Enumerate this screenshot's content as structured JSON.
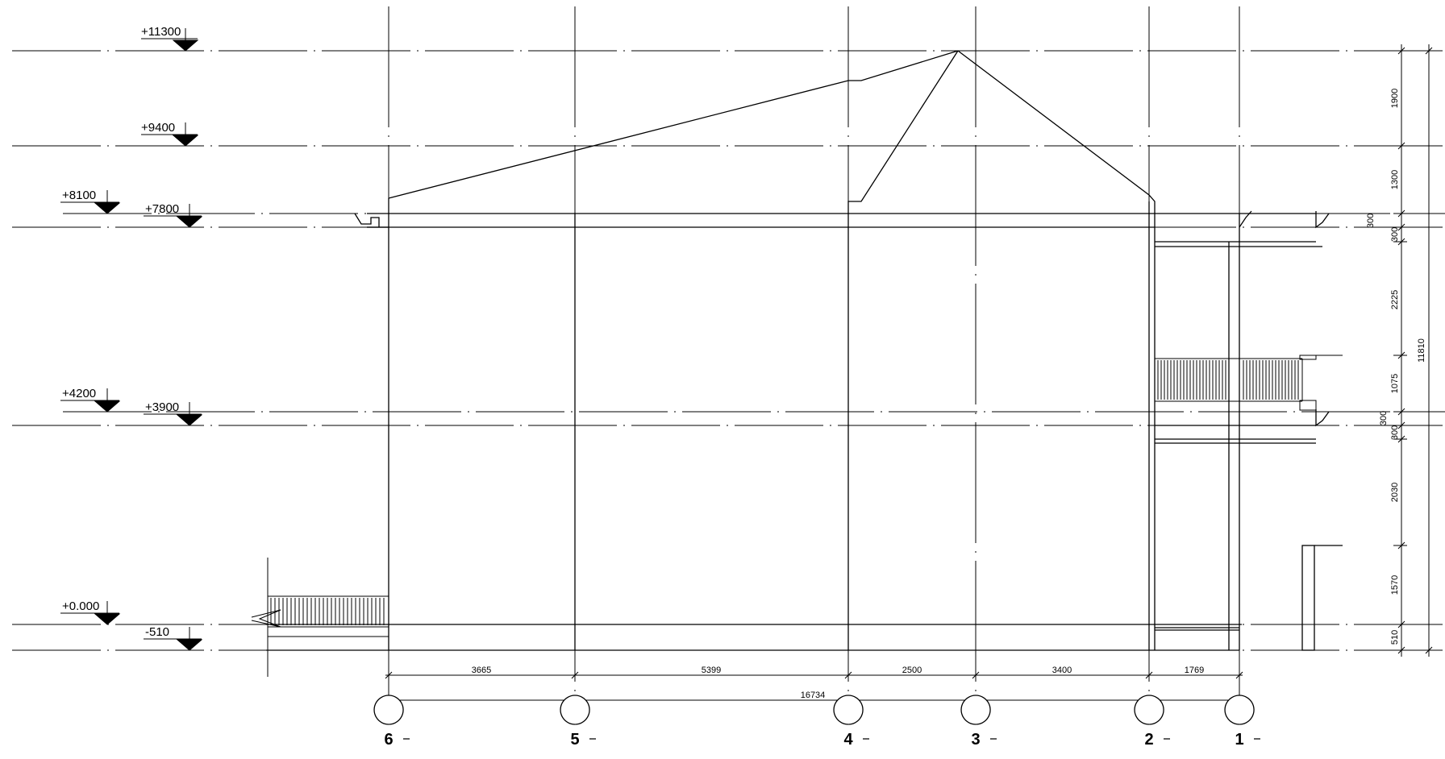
{
  "levels": [
    {
      "label": "+11300"
    },
    {
      "label": "+9400"
    },
    {
      "label": "+8100"
    },
    {
      "label": "+7800"
    },
    {
      "label": "+4200"
    },
    {
      "label": "+3900"
    },
    {
      "label": "+0.000"
    },
    {
      "label": "-510"
    }
  ],
  "grid_labels": [
    "6",
    "5",
    "4",
    "3",
    "2",
    "1"
  ],
  "horizontal_dims": [
    "3665",
    "5399",
    "2500",
    "3400",
    "1769"
  ],
  "horizontal_total": "16734",
  "vertical_dims": [
    "1900",
    "1300",
    "300",
    "300",
    "2225",
    "1075",
    "300",
    "300",
    "2030",
    "1570",
    "510"
  ],
  "vertical_total": "11810",
  "colors": {
    "line": "#000000",
    "background": "#ffffff"
  }
}
